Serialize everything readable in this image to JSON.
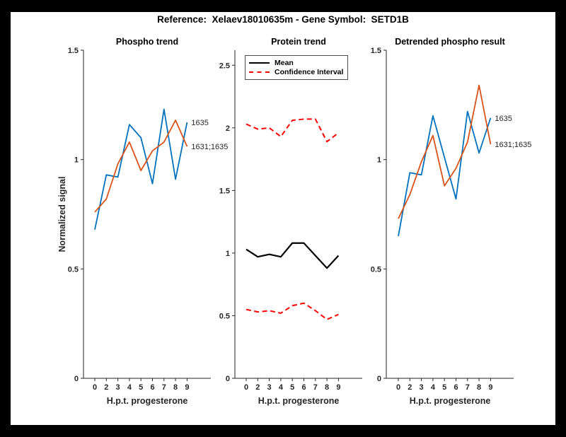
{
  "title": "Reference:  Xelaev18010635m - Gene Symbol:  SETD1B",
  "colors": {
    "blue": "#0072BD",
    "orange": "#D95319",
    "red": "#FF0000",
    "black": "#000000",
    "axis": "#262626",
    "window_border": "#000000",
    "figure_bg": "#ffffff"
  },
  "chart_data": [
    {
      "type": "line",
      "title": "Phospho trend",
      "xlabel": "H.p.t. progesterone",
      "ylabel": "Normalized signal",
      "categories": [
        "0",
        "2",
        "3",
        "4",
        "5",
        "6",
        "7",
        "8",
        "9"
      ],
      "y_ticks": [
        "0",
        "0.5",
        "1",
        "1.5"
      ],
      "y_tick_values": [
        0,
        0.5,
        1,
        1.5
      ],
      "ylim": [
        0,
        1.5
      ],
      "grid": false,
      "series": [
        {
          "name": "1635",
          "color": "#0072BD",
          "style": "solid",
          "end_label": "1635",
          "values": [
            0.68,
            0.93,
            0.92,
            1.16,
            1.1,
            0.89,
            1.23,
            0.91,
            1.17
          ]
        },
        {
          "name": "1631;1635",
          "color": "#D95319",
          "style": "solid",
          "end_label": "1631;1635",
          "values": [
            0.76,
            0.82,
            0.98,
            1.08,
            0.95,
            1.04,
            1.08,
            1.18,
            1.06
          ]
        }
      ]
    },
    {
      "type": "line",
      "title": "Protein trend",
      "xlabel": "H.p.t. progesterone",
      "ylabel": "",
      "categories": [
        "0",
        "2",
        "3",
        "4",
        "5",
        "6",
        "7",
        "8",
        "9"
      ],
      "y_ticks": [
        "0",
        "0.5",
        "1",
        "1.5",
        "2",
        "2.5"
      ],
      "y_tick_values": [
        0,
        0.5,
        1,
        1.5,
        2,
        2.5
      ],
      "ylim": [
        0,
        2.62
      ],
      "grid": false,
      "legend": {
        "position": "northwest",
        "items": [
          {
            "label": "Mean",
            "color": "#000000",
            "style": "solid"
          },
          {
            "label": "Confidence Interval",
            "color": "#FF0000",
            "style": "dashed"
          }
        ]
      },
      "series": [
        {
          "name": "Mean",
          "color": "#000000",
          "style": "solid",
          "values": [
            1.03,
            0.97,
            0.99,
            0.97,
            1.08,
            1.08,
            0.98,
            0.88,
            0.98
          ]
        },
        {
          "name": "Confidence Interval upper",
          "color": "#FF0000",
          "style": "dashed",
          "values": [
            2.03,
            1.99,
            2.0,
            1.93,
            2.06,
            2.07,
            2.07,
            1.89,
            1.96
          ]
        },
        {
          "name": "Confidence Interval lower",
          "color": "#FF0000",
          "style": "dashed",
          "values": [
            0.55,
            0.53,
            0.54,
            0.52,
            0.58,
            0.6,
            0.54,
            0.47,
            0.51
          ]
        }
      ]
    },
    {
      "type": "line",
      "title": "Detrended phospho result",
      "xlabel": "H.p.t. progesterone",
      "ylabel": "",
      "categories": [
        "0",
        "2",
        "3",
        "4",
        "5",
        "6",
        "7",
        "8",
        "9"
      ],
      "y_ticks": [
        "0",
        "0.5",
        "1",
        "1.5"
      ],
      "y_tick_values": [
        0,
        0.5,
        1,
        1.5
      ],
      "ylim": [
        0,
        1.5
      ],
      "grid": false,
      "series": [
        {
          "name": "1635",
          "color": "#0072BD",
          "style": "solid",
          "end_label": "1635",
          "values": [
            0.65,
            0.94,
            0.93,
            1.2,
            1.01,
            0.82,
            1.22,
            1.03,
            1.19
          ]
        },
        {
          "name": "1631;1635",
          "color": "#D95319",
          "style": "solid",
          "end_label": "1631;1635",
          "values": [
            0.73,
            0.84,
            0.99,
            1.11,
            0.88,
            0.96,
            1.08,
            1.34,
            1.07
          ]
        }
      ]
    }
  ]
}
